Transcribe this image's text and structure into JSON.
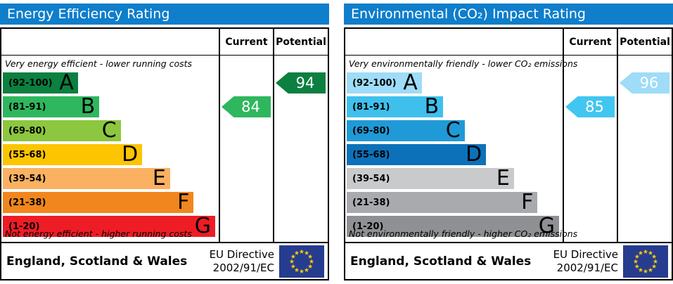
{
  "colors": {
    "header_bar": "#0f7ecb",
    "border": "#000000"
  },
  "eu_flag": {
    "background": "#263c8f",
    "star_color": "#ffcc00"
  },
  "panels": [
    {
      "title": "Energy Efficiency Rating",
      "columns": {
        "current": "Current",
        "potential": "Potential"
      },
      "top_caption": "Very energy efficient - lower running costs",
      "bottom_caption": "Not energy efficient - higher running costs",
      "bands": [
        {
          "letter": "A",
          "range": "(92-100)",
          "color": "#0c8040",
          "width_pct": 35
        },
        {
          "letter": "B",
          "range": "(81-91)",
          "color": "#2eb75e",
          "width_pct": 45
        },
        {
          "letter": "C",
          "range": "(69-80)",
          "color": "#8dc63f",
          "width_pct": 55
        },
        {
          "letter": "D",
          "range": "(55-68)",
          "color": "#fdc400",
          "width_pct": 65
        },
        {
          "letter": "E",
          "range": "(39-54)",
          "color": "#fbb162",
          "width_pct": 78
        },
        {
          "letter": "F",
          "range": "(21-38)",
          "color": "#f0861d",
          "width_pct": 89
        },
        {
          "letter": "G",
          "range": "(1-20)",
          "color": "#ee1c25",
          "width_pct": 99
        }
      ],
      "current": {
        "value": "84",
        "band": "B",
        "color": "#2eb75e"
      },
      "potential": {
        "value": "94",
        "band": "A",
        "color": "#0c8040"
      },
      "footer": {
        "region": "England, Scotland & Wales",
        "directive_line1": "EU Directive",
        "directive_line2": "2002/91/EC"
      }
    },
    {
      "title": "Environmental (CO₂) Impact Rating",
      "columns": {
        "current": "Current",
        "potential": "Potential"
      },
      "top_caption": "Very environmentally friendly - lower CO₂ emissions",
      "bottom_caption": "Not environmentally friendly - higher CO₂ emissions",
      "bands": [
        {
          "letter": "A",
          "range": "(92-100)",
          "color": "#9edcf7",
          "width_pct": 35
        },
        {
          "letter": "B",
          "range": "(81-91)",
          "color": "#3fc0ec",
          "width_pct": 45
        },
        {
          "letter": "C",
          "range": "(69-80)",
          "color": "#1f9ad7",
          "width_pct": 55
        },
        {
          "letter": "D",
          "range": "(55-68)",
          "color": "#0d71b9",
          "width_pct": 65
        },
        {
          "letter": "E",
          "range": "(39-54)",
          "color": "#c9cacc",
          "width_pct": 78
        },
        {
          "letter": "F",
          "range": "(21-38)",
          "color": "#a8aaad",
          "width_pct": 89
        },
        {
          "letter": "G",
          "range": "(1-20)",
          "color": "#8e9093",
          "width_pct": 99
        }
      ],
      "current": {
        "value": "85",
        "band": "B",
        "color": "#41c6f1"
      },
      "potential": {
        "value": "96",
        "band": "A",
        "color": "#9edcf7"
      },
      "footer": {
        "region": "England, Scotland & Wales",
        "directive_line1": "EU Directive",
        "directive_line2": "2002/91/EC"
      }
    }
  ],
  "chart_data": [
    {
      "type": "bar",
      "orientation": "horizontal",
      "title": "Energy Efficiency Rating",
      "categories": [
        "A",
        "B",
        "C",
        "D",
        "E",
        "F",
        "G"
      ],
      "band_ranges": [
        "92-100",
        "81-91",
        "69-80",
        "55-68",
        "39-54",
        "21-38",
        "1-20"
      ],
      "band_bar_widths_pct": [
        35,
        45,
        55,
        65,
        78,
        89,
        99
      ],
      "band_colors": [
        "#0c8040",
        "#2eb75e",
        "#8dc63f",
        "#fdc400",
        "#fbb162",
        "#f0861d",
        "#ee1c25"
      ],
      "current_rating": 84,
      "current_band": "B",
      "potential_rating": 94,
      "potential_band": "A",
      "scale": [
        1,
        100
      ],
      "top_note": "Very energy efficient - lower running costs",
      "bottom_note": "Not energy efficient - higher running costs"
    },
    {
      "type": "bar",
      "orientation": "horizontal",
      "title": "Environmental (CO₂) Impact Rating",
      "categories": [
        "A",
        "B",
        "C",
        "D",
        "E",
        "F",
        "G"
      ],
      "band_ranges": [
        "92-100",
        "81-91",
        "69-80",
        "55-68",
        "39-54",
        "21-38",
        "1-20"
      ],
      "band_bar_widths_pct": [
        35,
        45,
        55,
        65,
        78,
        89,
        99
      ],
      "band_colors": [
        "#9edcf7",
        "#3fc0ec",
        "#1f9ad7",
        "#0d71b9",
        "#c9cacc",
        "#a8aaad",
        "#8e9093"
      ],
      "current_rating": 85,
      "current_band": "B",
      "potential_rating": 96,
      "potential_band": "A",
      "scale": [
        1,
        100
      ],
      "top_note": "Very environmentally friendly - lower CO₂ emissions",
      "bottom_note": "Not environmentally friendly - higher CO₂ emissions"
    }
  ]
}
